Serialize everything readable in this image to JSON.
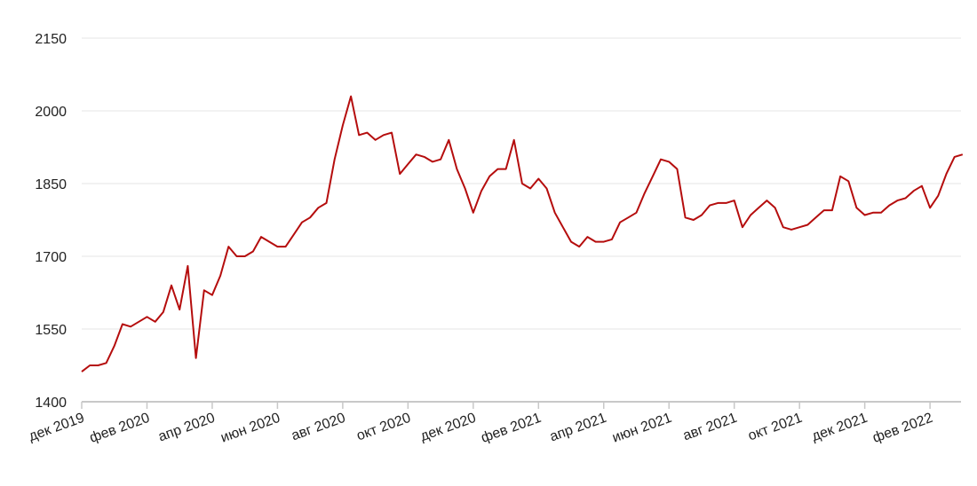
{
  "chart_data": {
    "type": "line",
    "categories": [
      "дек 2019",
      null,
      null,
      null,
      null,
      null,
      null,
      null,
      "фев 2020",
      null,
      null,
      null,
      null,
      null,
      null,
      null,
      "апр 2020",
      null,
      null,
      null,
      null,
      null,
      null,
      null,
      "июн 2020",
      null,
      null,
      null,
      null,
      null,
      null,
      null,
      "авг 2020",
      null,
      null,
      null,
      null,
      null,
      null,
      null,
      "окт 2020",
      null,
      null,
      null,
      null,
      null,
      null,
      null,
      "дек 2020",
      null,
      null,
      null,
      null,
      null,
      null,
      null,
      "фев 2021",
      null,
      null,
      null,
      null,
      null,
      null,
      null,
      "апр 2021",
      null,
      null,
      null,
      null,
      null,
      null,
      null,
      "июн 2021",
      null,
      null,
      null,
      null,
      null,
      null,
      null,
      "авг 2021",
      null,
      null,
      null,
      null,
      null,
      null,
      null,
      "окт 2021",
      null,
      null,
      null,
      null,
      null,
      null,
      null,
      "дек 2021",
      null,
      null,
      null,
      null,
      null,
      null,
      null,
      "фев 2022",
      null,
      null,
      null,
      null
    ],
    "series": [
      {
        "color": "#b50d0d",
        "values": [
          1462,
          1475,
          1475,
          1480,
          1515,
          1560,
          1555,
          1565,
          1575,
          1565,
          1585,
          1640,
          1590,
          1680,
          1490,
          1630,
          1620,
          1660,
          1720,
          1700,
          1700,
          1710,
          1740,
          1730,
          1720,
          1720,
          1745,
          1770,
          1780,
          1800,
          1810,
          1900,
          1970,
          2030,
          1950,
          1955,
          1940,
          1950,
          1955,
          1870,
          1890,
          1910,
          1905,
          1895,
          1900,
          1940,
          1880,
          1840,
          1790,
          1835,
          1865,
          1880,
          1880,
          1940,
          1850,
          1840,
          1860,
          1840,
          1790,
          1760,
          1730,
          1720,
          1740,
          1730,
          1730,
          1735,
          1770,
          1780,
          1790,
          1830,
          1865,
          1900,
          1895,
          1880,
          1780,
          1775,
          1785,
          1805,
          1810,
          1810,
          1815,
          1760,
          1785,
          1800,
          1815,
          1800,
          1760,
          1755,
          1760,
          1765,
          1780,
          1795,
          1795,
          1865,
          1855,
          1800,
          1785,
          1790,
          1790,
          1805,
          1815,
          1820,
          1835,
          1845,
          1800,
          1825,
          1870,
          1905,
          1910
        ]
      }
    ],
    "ylim": [
      1400,
      2150
    ],
    "yticks": [
      1400,
      1550,
      1700,
      1850,
      2000,
      2150
    ],
    "grid": true
  }
}
